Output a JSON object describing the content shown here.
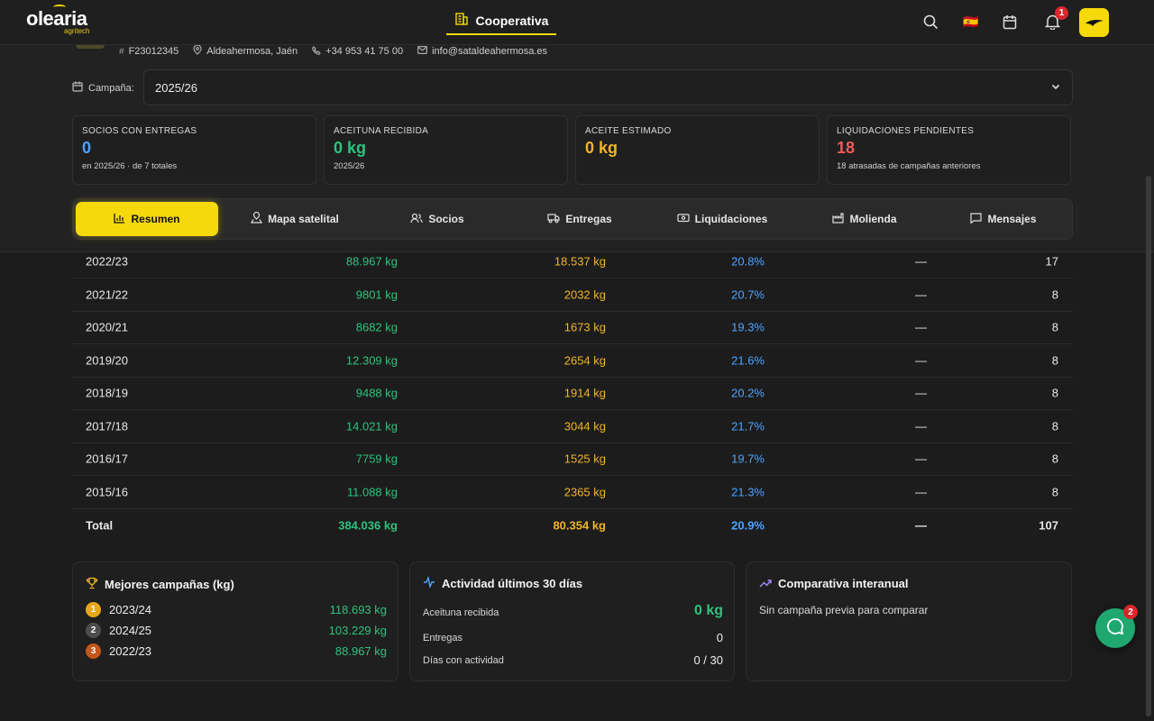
{
  "brand": {
    "name": "olearia",
    "sub": "agritech"
  },
  "nav": {
    "center_tab": "Cooperativa",
    "notifications_count": "1",
    "flag": "🇪🇸"
  },
  "coop": {
    "tax_id": "F23012345",
    "location": "Aldeahermosa, Jaén",
    "phone": "+34 953 41 75 00",
    "email": "info@sataldeahermosa.es"
  },
  "campaign": {
    "label": "Campaña:",
    "value": "2025/26"
  },
  "kpis": [
    {
      "title": "SOCIOS CON ENTREGAS",
      "value": "0",
      "sub": "en 2025/26 · de 7 totales",
      "color": "#4da3ff"
    },
    {
      "title": "ACEITUNA RECIBIDA",
      "value": "0 kg",
      "sub": "2025/26",
      "color": "#2ec27e"
    },
    {
      "title": "ACEITE ESTIMADO",
      "value": "0 kg",
      "sub": "",
      "color": "#f0b429"
    },
    {
      "title": "LIQUIDACIONES PENDIENTES",
      "value": "18",
      "sub": "18 atrasadas de campañas anteriores",
      "color": "#ef5a5a"
    }
  ],
  "tabs": [
    "Resumen",
    "Mapa satelital",
    "Socios",
    "Entregas",
    "Liquidaciones",
    "Molienda",
    "Mensajes"
  ],
  "table": {
    "rows": [
      [
        "2022/23",
        "88.967 kg",
        "18.537 kg",
        "20.8%",
        "—",
        "17"
      ],
      [
        "2021/22",
        "9801 kg",
        "2032 kg",
        "20.7%",
        "—",
        "8"
      ],
      [
        "2020/21",
        "8682 kg",
        "1673 kg",
        "19.3%",
        "—",
        "8"
      ],
      [
        "2019/20",
        "12.309 kg",
        "2654 kg",
        "21.6%",
        "—",
        "8"
      ],
      [
        "2018/19",
        "9488 kg",
        "1914 kg",
        "20.2%",
        "—",
        "8"
      ],
      [
        "2017/18",
        "14.021 kg",
        "3044 kg",
        "21.7%",
        "—",
        "8"
      ],
      [
        "2016/17",
        "7759 kg",
        "1525 kg",
        "19.7%",
        "—",
        "8"
      ],
      [
        "2015/16",
        "11.088 kg",
        "2365 kg",
        "21.3%",
        "—",
        "8"
      ]
    ],
    "total": [
      "Total",
      "384.036 kg",
      "80.354 kg",
      "20.9%",
      "—",
      "107"
    ]
  },
  "best": {
    "title": "Mejores campañas (kg)",
    "items": [
      {
        "rank": "1",
        "year": "2023/24",
        "kg": "118.693 kg",
        "color": "#e6a817"
      },
      {
        "rank": "2",
        "year": "2024/25",
        "kg": "103.229 kg",
        "color": "#5a5a5a"
      },
      {
        "rank": "3",
        "year": "2022/23",
        "kg": "88.967 kg",
        "color": "#c4561a"
      }
    ]
  },
  "activity": {
    "title": "Actividad últimos 30 días",
    "rows": [
      {
        "label": "Aceituna recibida",
        "value": "0 kg"
      },
      {
        "label": "Entregas",
        "value": "0"
      },
      {
        "label": "Días con actividad",
        "value": "0 / 30"
      }
    ]
  },
  "compare": {
    "title": "Comparativa interanual",
    "text": "Sin campaña previa para comparar"
  },
  "chat": {
    "badge": "2"
  }
}
